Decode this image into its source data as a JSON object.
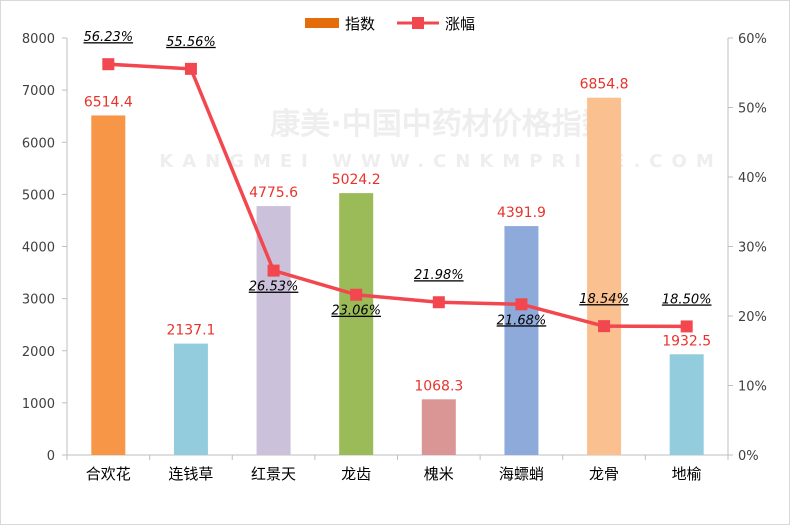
{
  "watermark": {
    "line1": "康美·中国中药材价格指数",
    "line2": "KANGMEI WWW.CNKMPRICE.COM"
  },
  "chart_data": {
    "type": "bar",
    "categories": [
      "合欢花",
      "连钱草",
      "红景天",
      "龙齿",
      "槐米",
      "海螵蛸",
      "龙骨",
      "地榆"
    ],
    "series": [
      {
        "name": "指数",
        "type": "bar",
        "axis": "left",
        "values": [
          6514.4,
          2137.1,
          4775.6,
          5024.2,
          1068.3,
          4391.9,
          6854.8,
          1932.5
        ],
        "labels": [
          "6514.4",
          "2137.1",
          "4775.6",
          "5024.2",
          "1068.3",
          "4391.9",
          "6854.8",
          "1932.5"
        ]
      },
      {
        "name": "涨幅",
        "type": "line",
        "axis": "right",
        "values": [
          0.5623,
          0.5556,
          0.2653,
          0.2306,
          0.2198,
          0.2168,
          0.1854,
          0.185
        ],
        "labels": [
          "56.23%",
          "55.56%",
          "26.53%",
          "23.06%",
          "21.98%",
          "21.68%",
          "18.54%",
          "18.50%"
        ],
        "label_position": [
          "above",
          "above",
          "below",
          "below",
          "above",
          "below",
          "above",
          "above"
        ]
      }
    ],
    "bar_colors": [
      "#f79646",
      "#93cddd",
      "#ccc1da",
      "#9bbb59",
      "#d99694",
      "#8eaadb",
      "#fac090",
      "#93cddd"
    ],
    "line_color": "#f2474e",
    "legend_color_bar": "#e46c0a",
    "y_left": {
      "ylim": [
        0,
        8000
      ],
      "ticks": [
        "0",
        "1000",
        "2000",
        "3000",
        "4000",
        "5000",
        "6000",
        "7000",
        "8000"
      ]
    },
    "y_right": {
      "ylim": [
        0,
        0.6
      ],
      "ticks": [
        "0%",
        "10%",
        "20%",
        "30%",
        "40%",
        "50%",
        "60%"
      ]
    },
    "legend": {
      "position": "top-center",
      "items": [
        "指数",
        "涨幅"
      ]
    },
    "grid": false
  }
}
